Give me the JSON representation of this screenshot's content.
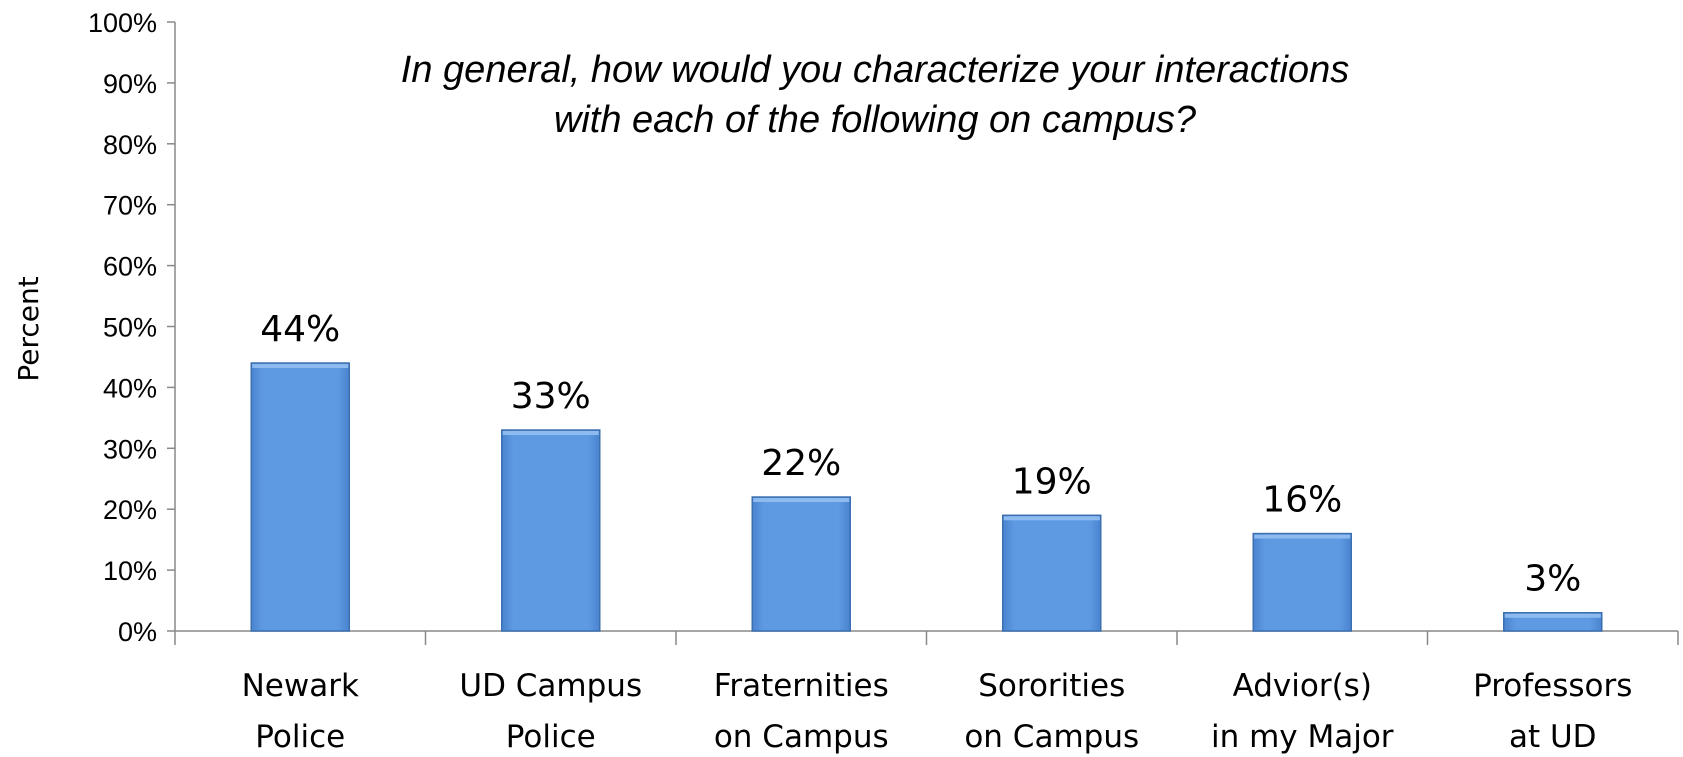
{
  "chart_data": {
    "type": "bar",
    "title_lines": [
      "In general, how would you characterize your interactions",
      "with each of the following on campus?"
    ],
    "xlabel": "",
    "ylabel": "Percent",
    "ylim": [
      0,
      100
    ],
    "yticks": [
      "0%",
      "10%",
      "20%",
      "30%",
      "40%",
      "50%",
      "60%",
      "70%",
      "80%",
      "90%",
      "100%"
    ],
    "categories": [
      [
        "Newark",
        "Police"
      ],
      [
        "UD Campus",
        "Police"
      ],
      [
        "Fraternities",
        "on Campus"
      ],
      [
        "Sororities",
        "on Campus"
      ],
      [
        "Advior(s)",
        "in my Major"
      ],
      [
        "Professors",
        "at UD"
      ]
    ],
    "values": [
      44,
      33,
      22,
      19,
      16,
      3
    ],
    "data_labels": [
      "44%",
      "33%",
      "22%",
      "19%",
      "16%",
      "3%"
    ],
    "bar_color": "#5B96DE",
    "bar_edge_color": "#3C6FB0",
    "grid": false,
    "legend": "none"
  }
}
